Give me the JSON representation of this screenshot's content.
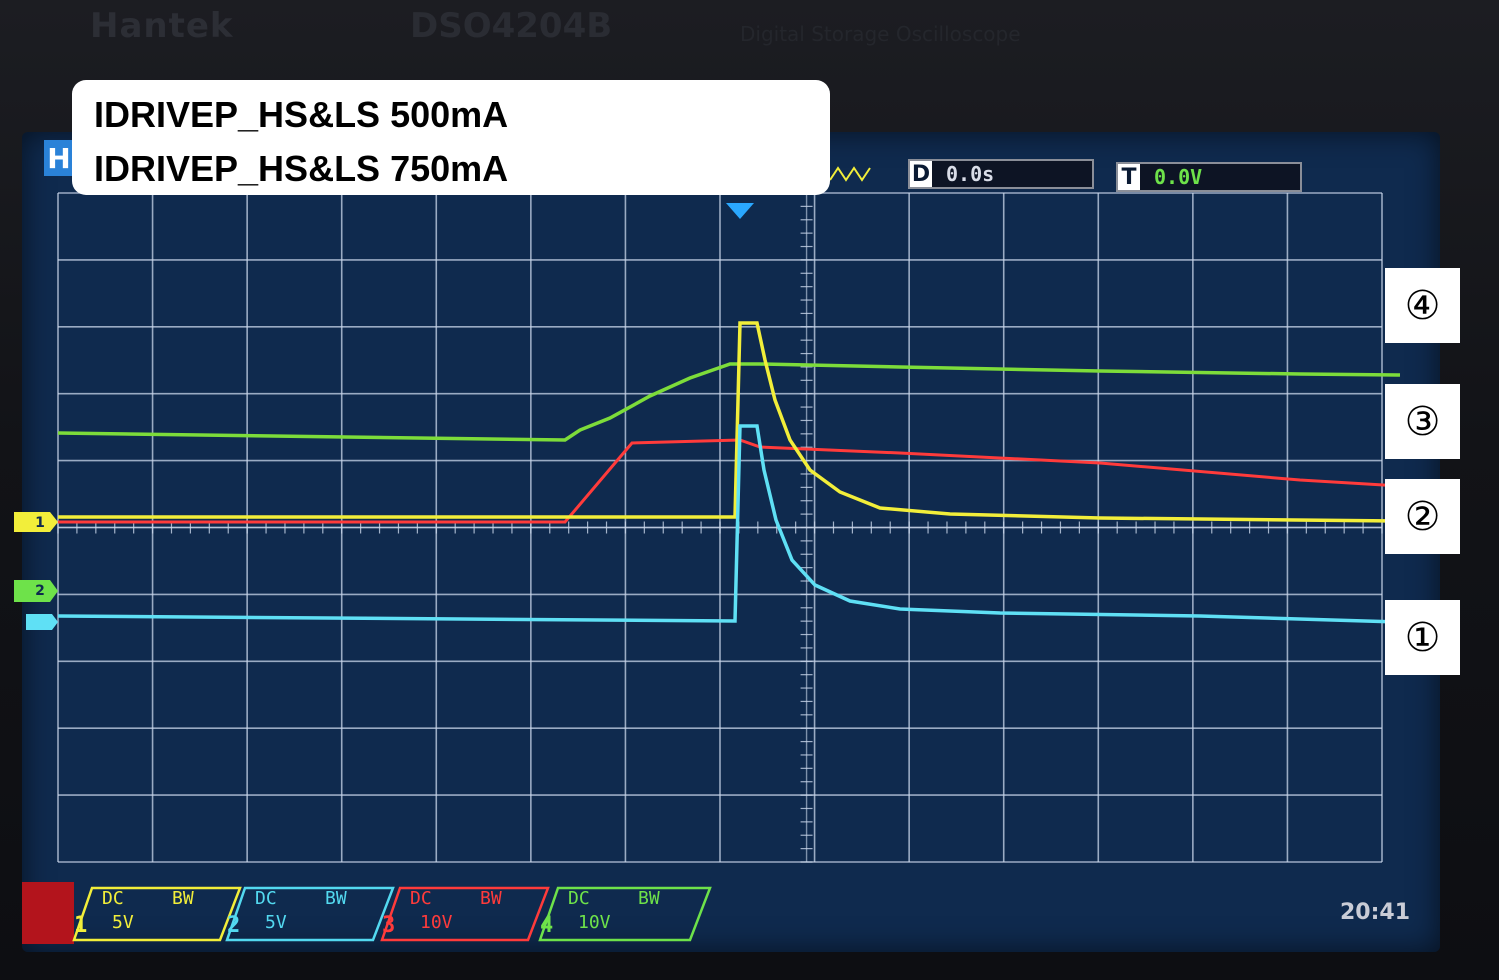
{
  "device": {
    "brand": "Hantek",
    "model": "DSO4204B",
    "subtitle": "Digital Storage Oscilloscope"
  },
  "annotation": {
    "line1": "IDRIVEP_HS&LS 500mA",
    "line2": "IDRIVEP_HS&LS 750mA"
  },
  "markers": [
    "④",
    "③",
    "②",
    "①"
  ],
  "header": {
    "menu_key": "H",
    "delay_key": "D",
    "delay_value": "0.0s",
    "trigger_key": "T",
    "trigger_value": "0.0V"
  },
  "channels": [
    {
      "number": "1",
      "coupling": "DC",
      "bw": "BW",
      "scale": "5V",
      "color": "#f2ee3a"
    },
    {
      "number": "2",
      "coupling": "DC",
      "bw": "BW",
      "scale": "5V",
      "color": "#53d9f0"
    },
    {
      "number": "3",
      "coupling": "DC",
      "bw": "BW",
      "scale": "10V",
      "color": "#ff3b3b"
    },
    {
      "number": "4",
      "coupling": "DC",
      "bw": "BW",
      "scale": "10V",
      "color": "#6ee24a"
    }
  ],
  "ground_markers": [
    {
      "channel": "1",
      "label": "1"
    },
    {
      "channel": "2",
      "label": "2"
    }
  ],
  "clock": "20:41",
  "colors": {
    "grid": "#c9d6ea",
    "screen": "#0f2a4e",
    "trigger_marker": "#2aa8ff"
  }
}
